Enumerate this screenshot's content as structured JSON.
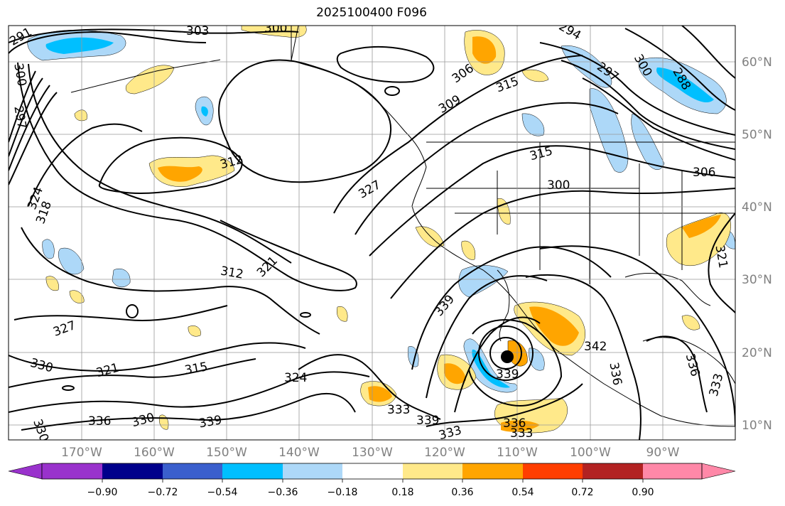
{
  "title": "2025100400 F096",
  "map": {
    "projection": "PlateCarree",
    "lon_range": [
      -180,
      -80
    ],
    "lat_range": [
      8,
      65
    ],
    "grid": true,
    "lat_ticks": [
      {
        "value": 60,
        "label": "60°N"
      },
      {
        "value": 50,
        "label": "50°N"
      },
      {
        "value": 40,
        "label": "40°N"
      },
      {
        "value": 30,
        "label": "30°N"
      },
      {
        "value": 20,
        "label": "20°N"
      },
      {
        "value": 10,
        "label": "10°N"
      }
    ],
    "lon_ticks": [
      {
        "value": -170,
        "label": "170°W"
      },
      {
        "value": -160,
        "label": "160°W"
      },
      {
        "value": -150,
        "label": "150°W"
      },
      {
        "value": -140,
        "label": "140°W"
      },
      {
        "value": -130,
        "label": "130°W"
      },
      {
        "value": -120,
        "label": "120°W"
      },
      {
        "value": -110,
        "label": "110°W"
      },
      {
        "value": -100,
        "label": "100°W"
      },
      {
        "value": -90,
        "label": "90°W"
      }
    ],
    "contour_labels": [
      "303",
      "300",
      "297",
      "300",
      "291",
      "294",
      "297",
      "288",
      "300",
      "306",
      "309",
      "315",
      "315",
      "300",
      "306",
      "312",
      "327",
      "324",
      "318",
      "312",
      "321",
      "327",
      "330",
      "321",
      "315",
      "324",
      "339",
      "339",
      "342",
      "336",
      "330",
      "336",
      "339",
      "333",
      "339",
      "333",
      "336",
      "333",
      "330",
      "333",
      "336",
      "321"
    ]
  },
  "colorbar": {
    "extend": "both",
    "tick_labels": [
      "−0.90",
      "−0.72",
      "−0.54",
      "−0.36",
      "−0.18",
      "0.18",
      "0.36",
      "0.54",
      "0.72",
      "0.90"
    ],
    "colors": [
      "#9932CC",
      "#00008B",
      "#3A5FCD",
      "#00BFFF",
      "#ADD8F8",
      "#FFFFFF",
      "#FFE98A",
      "#FFA500",
      "#FF3E00",
      "#B22222",
      "#FF88A8"
    ]
  }
}
